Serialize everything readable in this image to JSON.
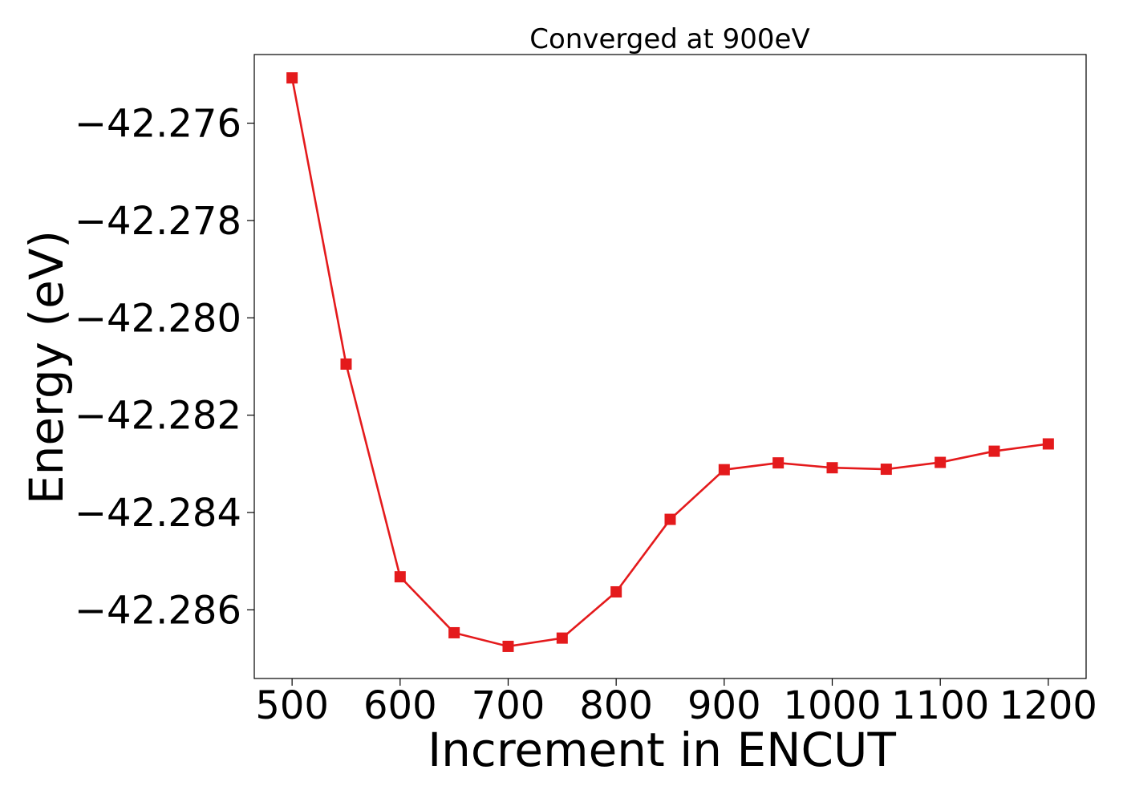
{
  "chart_data": {
    "type": "line",
    "title": "Converged at 900eV",
    "xlabel": "Increment in ENCUT",
    "ylabel": "Energy (eV)",
    "x": [
      500,
      550,
      600,
      650,
      700,
      750,
      800,
      850,
      900,
      950,
      1000,
      1050,
      1100,
      1150,
      1200
    ],
    "series": [
      {
        "values": [
          -42.27507,
          -42.28095,
          -42.28532,
          -42.28647,
          -42.28675,
          -42.28658,
          -42.28563,
          -42.28414,
          -42.28312,
          -42.28298,
          -42.28308,
          -42.28311,
          -42.28297,
          -42.28274,
          -42.28259
        ],
        "color": "#e41a1c",
        "marker": "square"
      }
    ],
    "xticks": [
      500,
      600,
      700,
      800,
      900,
      1000,
      1100,
      1200
    ],
    "yticks": [
      -42.276,
      -42.278,
      -42.28,
      -42.282,
      -42.284,
      -42.286
    ],
    "ytick_labels": [
      "−42.276",
      "−42.278",
      "−42.280",
      "−42.282",
      "−42.284",
      "−42.286"
    ],
    "xlim": [
      465,
      1235
    ],
    "ylim": [
      -42.28741,
      -42.27459
    ],
    "grid": false,
    "legend": "none"
  }
}
